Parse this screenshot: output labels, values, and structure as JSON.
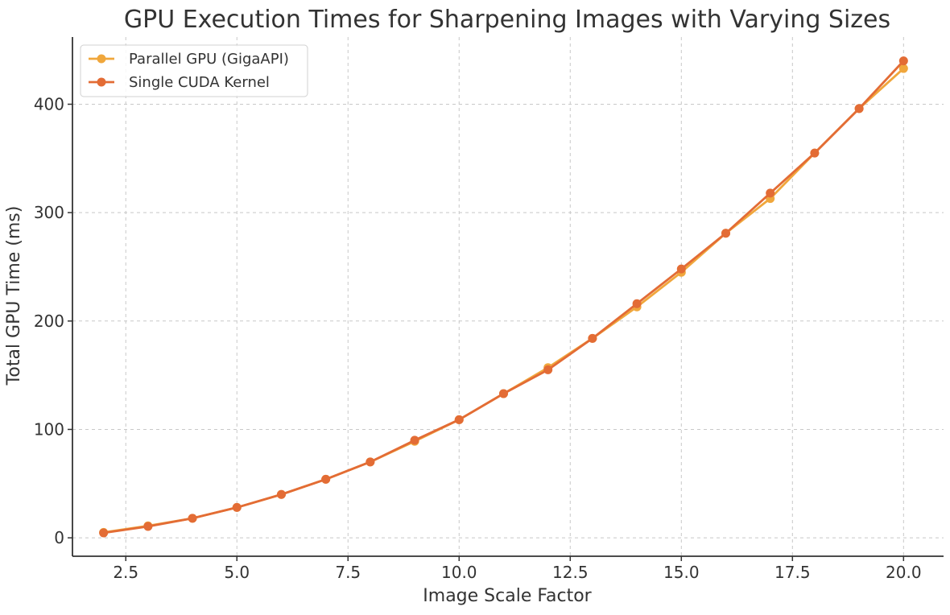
{
  "chart_data": {
    "type": "line",
    "title": "GPU Execution Times for Sharpening Images with Varying Sizes",
    "xlabel": "Image Scale Factor",
    "ylabel": "Total GPU Time (ms)",
    "xlim": [
      1.3,
      20.9
    ],
    "ylim": [
      -17,
      462
    ],
    "x_ticks": [
      2.5,
      5.0,
      7.5,
      10.0,
      12.5,
      15.0,
      17.5,
      20.0
    ],
    "x_tick_labels": [
      "2.5",
      "5.0",
      "7.5",
      "10.0",
      "12.5",
      "15.0",
      "17.5",
      "20.0"
    ],
    "y_ticks": [
      0,
      100,
      200,
      300,
      400
    ],
    "y_tick_labels": [
      "0",
      "100",
      "200",
      "300",
      "400"
    ],
    "grid": true,
    "legend_position": "top-left",
    "x": [
      2,
      3,
      4,
      5,
      6,
      7,
      8,
      9,
      10,
      11,
      12,
      13,
      14,
      15,
      16,
      17,
      18,
      19,
      20
    ],
    "series": [
      {
        "name": "Parallel GPU (GigaAPI)",
        "color": "#f0a73c",
        "values": [
          5,
          11,
          18,
          28,
          40,
          54,
          70,
          89,
          109,
          133,
          157,
          184,
          213,
          245,
          281,
          313,
          355,
          396,
          433
        ]
      },
      {
        "name": "Single CUDA Kernel",
        "color": "#e36c35",
        "values": [
          4.5,
          10.5,
          18,
          28,
          40,
          54,
          70,
          90,
          109,
          133,
          155,
          184,
          216,
          248,
          281,
          318,
          355,
          396,
          440
        ]
      }
    ]
  }
}
